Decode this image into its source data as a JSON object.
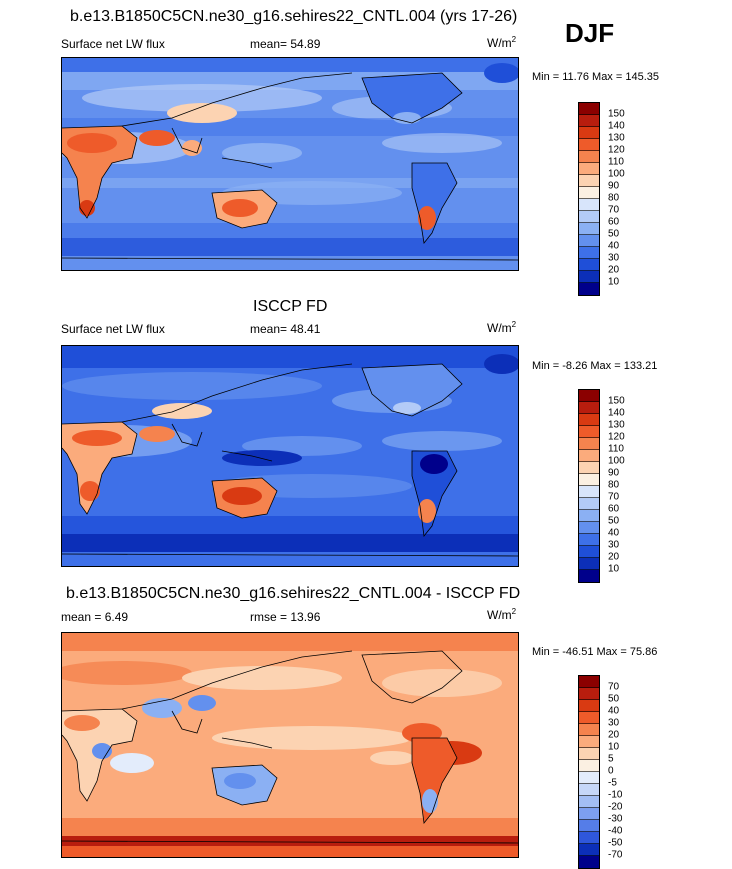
{
  "season": "DJF",
  "panels": [
    {
      "title": "b.e13.B1850C5CN.ne30_g16.sehires22_CNTL.004 (yrs 17-26)",
      "left_text": "Surface net LW flux",
      "mid_text": "mean=  54.89",
      "units": "W/m",
      "units_sup": "2",
      "minmax": "Min =  11.76 Max = 145.35",
      "map_type": "model_flux",
      "colorbar": {
        "labels": [
          "150",
          "140",
          "130",
          "120",
          "110",
          "100",
          "90",
          "80",
          "70",
          "60",
          "50",
          "40",
          "30",
          "20",
          "10"
        ],
        "colors": [
          "#8b0000",
          "#b81d0e",
          "#d93a12",
          "#ee5b2a",
          "#f5834e",
          "#fbab7c",
          "#fcd3b2",
          "#fbf0e2",
          "#d8e5fb",
          "#b3cbf7",
          "#8bb0f3",
          "#6390ee",
          "#3e70e8",
          "#1f4fd8",
          "#0c2fb8",
          "#00008b"
        ]
      }
    },
    {
      "title": "ISCCP FD",
      "left_text": "Surface net LW flux",
      "mid_text": "mean=  48.41",
      "units": "W/m",
      "units_sup": "2",
      "minmax": "Min =  -8.26 Max = 133.21",
      "map_type": "obs_flux",
      "colorbar": {
        "labels": [
          "150",
          "140",
          "130",
          "120",
          "110",
          "100",
          "90",
          "80",
          "70",
          "60",
          "50",
          "40",
          "30",
          "20",
          "10"
        ],
        "colors": [
          "#8b0000",
          "#b81d0e",
          "#d93a12",
          "#ee5b2a",
          "#f5834e",
          "#fbab7c",
          "#fcd3b2",
          "#fbf0e2",
          "#d8e5fb",
          "#b3cbf7",
          "#8bb0f3",
          "#6390ee",
          "#3e70e8",
          "#1f4fd8",
          "#0c2fb8",
          "#00008b"
        ]
      }
    },
    {
      "title": "b.e13.B1850C5CN.ne30_g16.sehires22_CNTL.004 - ISCCP FD",
      "left_text": "mean =   6.49",
      "mid_text": "rmse =  13.96",
      "units": "W/m",
      "units_sup": "2",
      "minmax": "Min = -46.51 Max =  75.86",
      "map_type": "difference",
      "colorbar": {
        "labels": [
          "70",
          "50",
          "40",
          "30",
          "20",
          "10",
          "5",
          "0",
          "-5",
          "-10",
          "-20",
          "-30",
          "-40",
          "-50",
          "-70"
        ],
        "colors": [
          "#8b0000",
          "#b81d0e",
          "#d93a12",
          "#ee5b2a",
          "#f5834e",
          "#fbab7c",
          "#fcd3b2",
          "#fbf0e2",
          "#e3ecfb",
          "#c6d7f8",
          "#a3bef4",
          "#7d9ff0",
          "#557de8",
          "#2f57db",
          "#0c2fb8",
          "#00008b"
        ]
      }
    }
  ]
}
